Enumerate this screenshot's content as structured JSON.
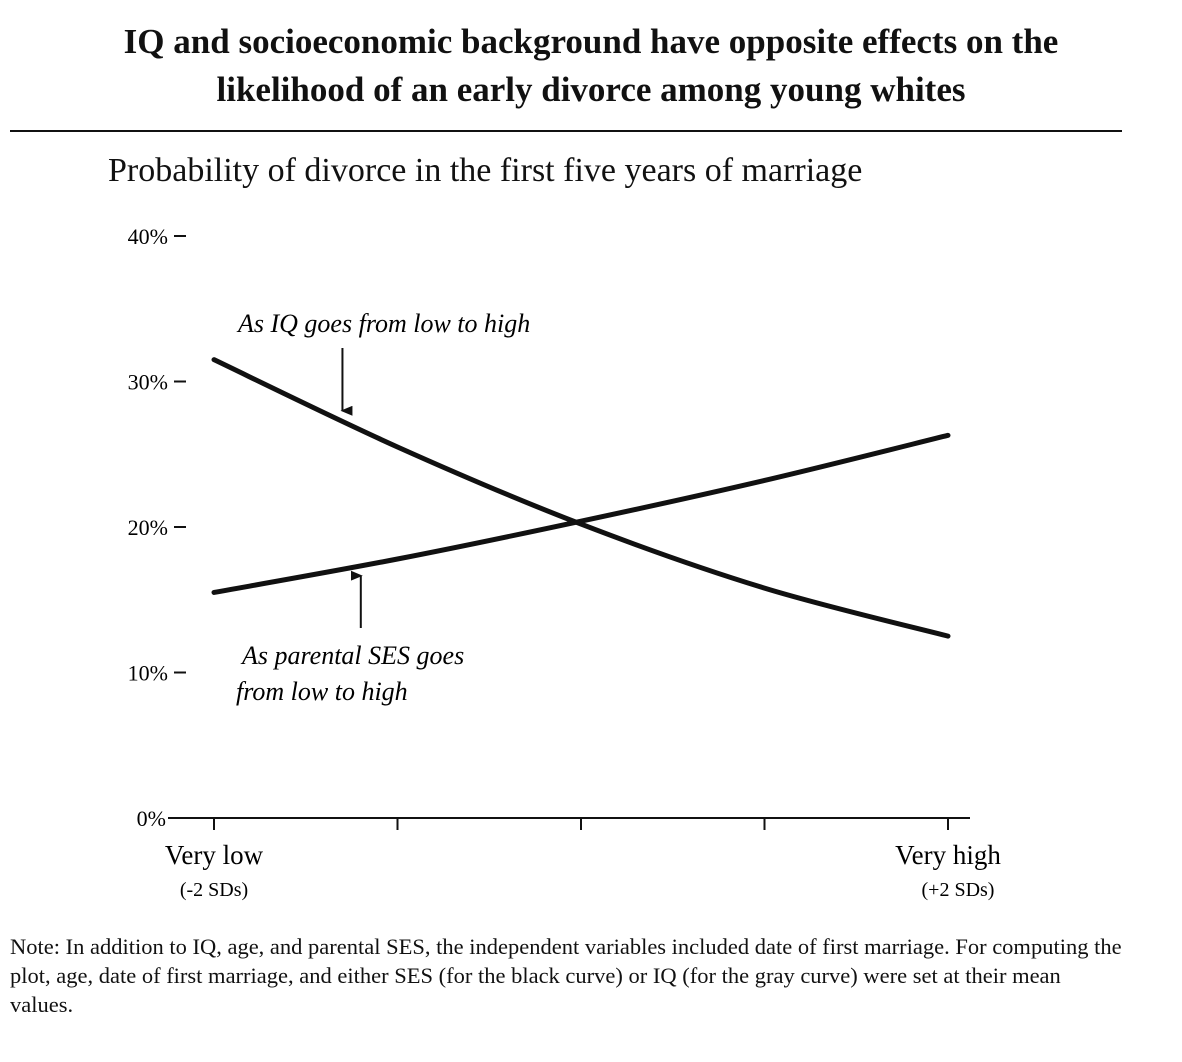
{
  "title_lines": [
    "IQ and socioeconomic background have opposite effects on the",
    "likelihood of an early divorce among young whites"
  ],
  "note": "Note: In addition to IQ, age, and parental SES, the independent variables included date of first marriage. For computing the plot, age, date of first marriage, and either SES (for the black curve) or IQ (for the gray curve) were set at their mean values.",
  "chart_data": {
    "type": "line",
    "title": "Probability of divorce in the first five years of marriage",
    "xlabel": "",
    "ylabel": "",
    "x": [
      -2,
      -1,
      0,
      1,
      2
    ],
    "xlim": [
      -2,
      2
    ],
    "ylim": [
      0,
      40
    ],
    "y_ticks": [
      0,
      10,
      20,
      30,
      40
    ],
    "y_tick_labels": [
      "0%",
      "10%",
      "20%",
      "30%",
      "40%"
    ],
    "x_ticks": [
      -2,
      -1,
      0,
      1,
      2
    ],
    "x_tick_labels": [
      {
        "value": -2,
        "main": "Very low",
        "sub": "(-2 SDs)"
      },
      {
        "value": 2,
        "main": "Very high",
        "sub": "(+2 SDs)"
      }
    ],
    "grid": false,
    "series": [
      {
        "name": "As IQ goes from low to high",
        "color": "#111111",
        "values": [
          31.5,
          25.5,
          20.2,
          15.8,
          12.5
        ]
      },
      {
        "name": "As parental SES goes from low to high",
        "color": "#111111",
        "values": [
          15.5,
          17.8,
          20.4,
          23.2,
          26.3
        ]
      }
    ],
    "annotations": [
      {
        "text": "As IQ goes from low to high",
        "series": 0,
        "x": -1.3,
        "arrow_direction": "down"
      },
      {
        "text_lines": [
          "As parental SES goes",
          "from low to high"
        ],
        "series": 1,
        "x": -1.2,
        "arrow_direction": "up"
      }
    ]
  }
}
